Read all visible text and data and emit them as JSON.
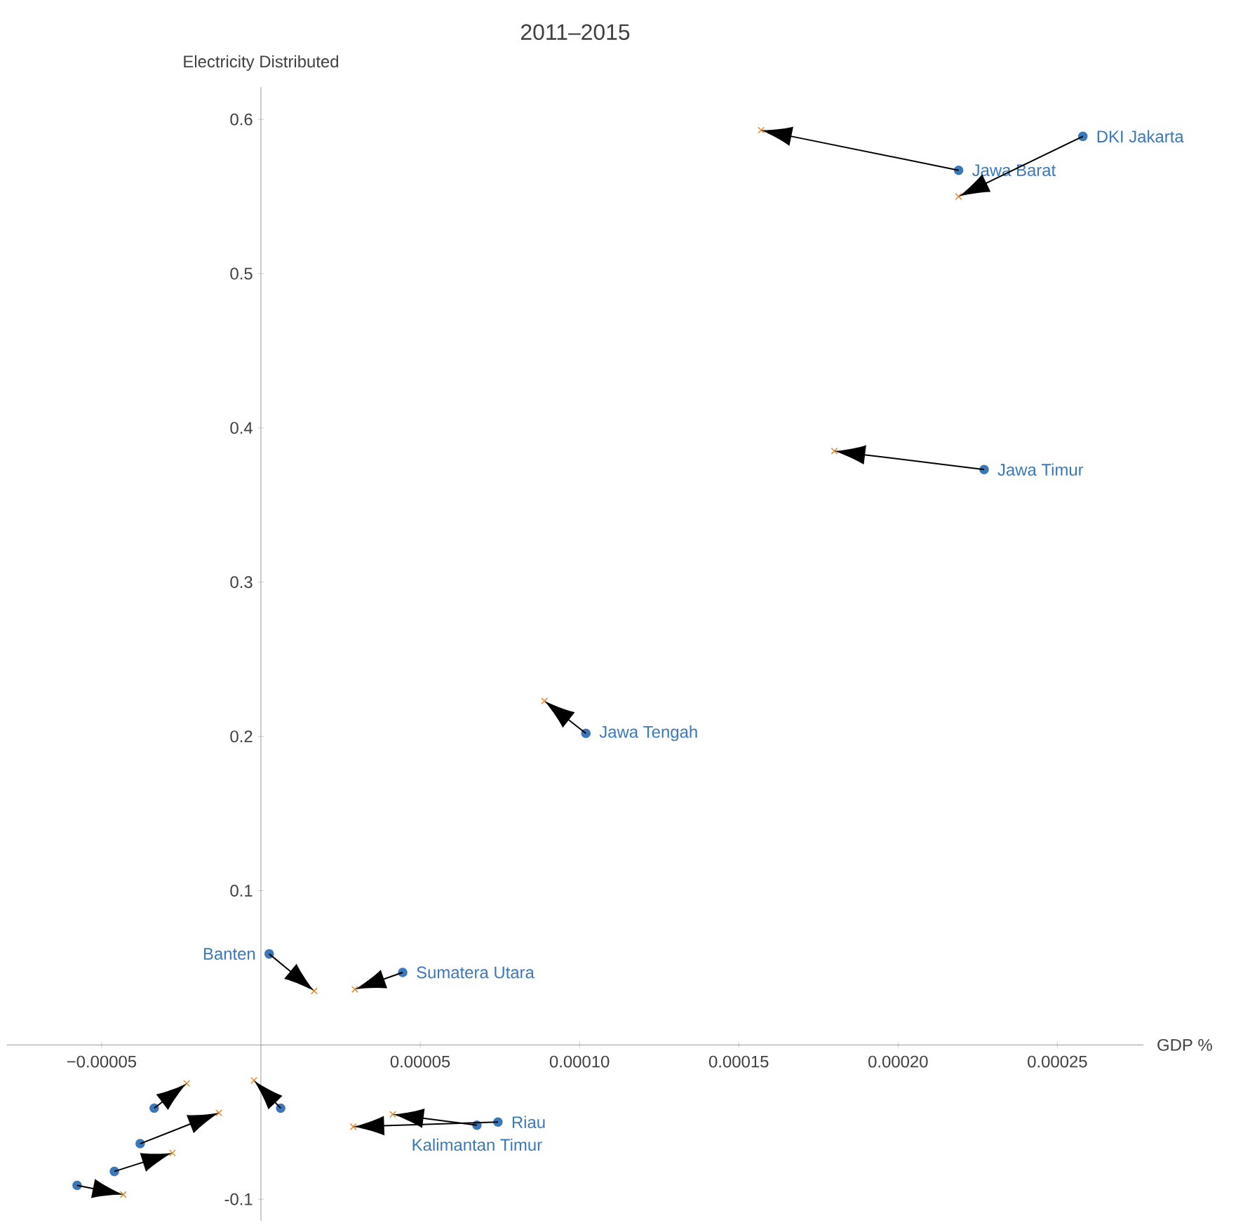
{
  "chart_data": {
    "type": "scatter",
    "title": "2011–2015",
    "xlabel": "GDP %",
    "ylabel": "Electricity Distributed",
    "xlim": [
      -7.97e-05,
      0.000277
    ],
    "ylim": [
      -0.114,
      0.621
    ],
    "xticks": [
      {
        "value": -5e-05,
        "label": "−0.00005"
      },
      {
        "value": 5e-05,
        "label": "0.00005"
      },
      {
        "value": 0.0001,
        "label": "0.00010"
      },
      {
        "value": 0.00015,
        "label": "0.00015"
      },
      {
        "value": 0.0002,
        "label": "0.00020"
      },
      {
        "value": 0.00025,
        "label": "0.00025"
      }
    ],
    "yticks": [
      -0.1,
      0.1,
      0.2,
      0.3,
      0.4,
      0.5,
      0.6
    ],
    "series": [
      {
        "color": "#3b78b9",
        "marker": "circle",
        "x": [
          0.000258,
          0.000219,
          0.000227,
          0.000102,
          2.6e-06,
          4.45e-05,
          7.44e-05,
          6.78e-05,
          6.2e-06,
          -3.35e-05,
          -3.79e-05,
          -5.77e-05,
          -4.6e-05
        ],
        "values": [
          0.589,
          0.567,
          0.373,
          0.202,
          0.059,
          0.047,
          -0.05,
          -0.052,
          -0.041,
          -0.041,
          -0.064,
          -0.091,
          -0.082
        ]
      },
      {
        "color": "#e69138",
        "marker": "cross",
        "x": [
          0.000219,
          0.000157,
          0.00018,
          8.9e-05,
          1.67e-05,
          2.95e-05,
          2.9e-05,
          4.14e-05,
          -2.2e-06,
          -2.33e-05,
          -1.32e-05,
          -4.32e-05,
          -2.78e-05
        ],
        "values": [
          0.55,
          0.593,
          0.385,
          0.223,
          0.035,
          0.036,
          -0.053,
          -0.045,
          -0.023,
          -0.025,
          -0.044,
          -0.097,
          -0.07
        ]
      }
    ],
    "annotations": [
      {
        "text": "DKI Jakarta",
        "x": 0.000258,
        "y": 0.589
      },
      {
        "text": "Jawa Barat",
        "x": 0.000219,
        "y": 0.567
      },
      {
        "text": "Jawa Timur",
        "x": 0.000227,
        "y": 0.373
      },
      {
        "text": "Jawa Tengah",
        "x": 0.000102,
        "y": 0.202
      },
      {
        "text": "Banten",
        "x": 2.6e-06,
        "y": 0.059
      },
      {
        "text": "Sumatera Utara",
        "x": 4.45e-05,
        "y": 0.047
      },
      {
        "text": "Riau",
        "x": 7.44e-05,
        "y": -0.05
      },
      {
        "text": "Kalimantan Timur",
        "x": 6.78e-05,
        "y": -0.052
      }
    ]
  }
}
